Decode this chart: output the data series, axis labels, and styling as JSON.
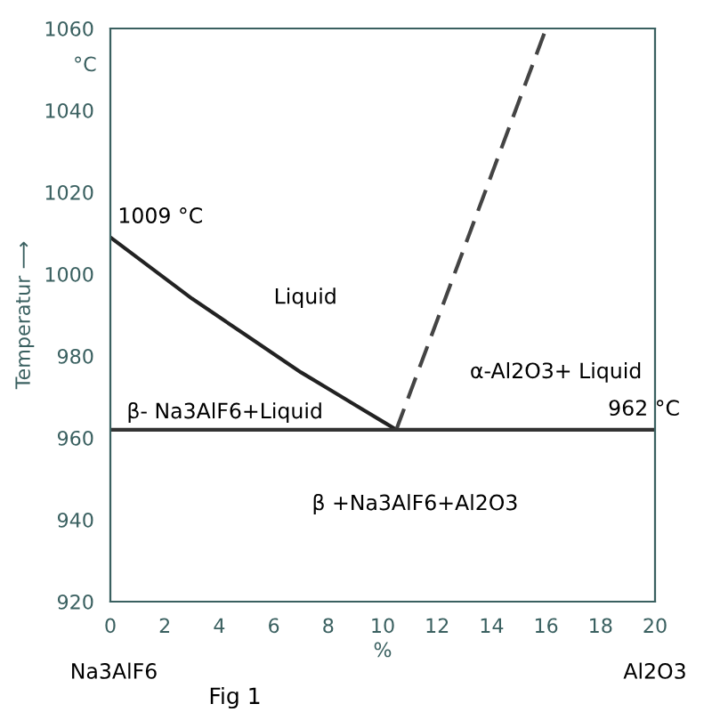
{
  "chart_data": {
    "type": "line",
    "xlabel": "%",
    "ylabel": "Temperatur ⟶",
    "xlim": [
      0,
      20
    ],
    "xticks": [
      0,
      2,
      4,
      6,
      8,
      10,
      12,
      14,
      16,
      18,
      20
    ],
    "ylim": [
      920,
      1060
    ],
    "yticks": [
      920,
      940,
      960,
      980,
      1000,
      1020,
      1040,
      1060
    ],
    "grid": false,
    "legend": false,
    "marker": "none",
    "series": [
      {
        "color": "#222222",
        "line_style": "solid",
        "x": [
          0,
          1,
          2,
          3,
          4,
          5,
          6,
          7,
          8,
          9,
          10,
          10.5
        ],
        "values": [
          1009,
          1004,
          999,
          994,
          989.5,
          985,
          980.5,
          976,
          972,
          968,
          964,
          962
        ]
      },
      {
        "color": "#444444",
        "line_style": "dashed",
        "x": [
          10.5,
          16
        ],
        "values": [
          962,
          1060
        ]
      },
      {
        "color": "#333333",
        "line_style": "solid",
        "x": [
          0,
          20
        ],
        "values": [
          962,
          962
        ]
      }
    ],
    "annotations": [
      {
        "text": "1009 °C",
        "x": 0,
        "y": 1009
      },
      {
        "text": "962 °C",
        "x": 18,
        "y": 962
      },
      "Liquid",
      "β- Na3AlF6+Liquid",
      "α-Al2O3+ Liquid",
      "β +Na3AlF6+Al2O3",
      "Na3AlF6",
      "Al2O3",
      "°C",
      "Fig 1"
    ]
  }
}
